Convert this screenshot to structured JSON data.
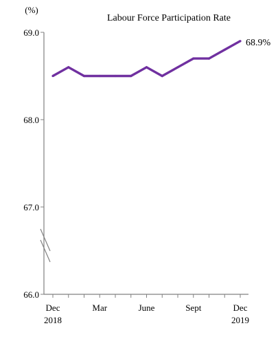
{
  "chart_data": {
    "type": "line",
    "title": "Labour Force Participation Rate",
    "unit_label": "(%)",
    "ylim": [
      66.0,
      69.0
    ],
    "yticks": [
      "66.0",
      "67.0",
      "68.0",
      "69.0"
    ],
    "axis_break": true,
    "grid": false,
    "x": [
      "Dec 2018",
      "Jan 2019",
      "Feb 2019",
      "Mar 2019",
      "Apr 2019",
      "May 2019",
      "Jun 2019",
      "Jul 2019",
      "Aug 2019",
      "Sep 2019",
      "Oct 2019",
      "Nov 2019",
      "Dec 2019"
    ],
    "xtick_labels": [
      {
        "index": 0,
        "line1": "Dec",
        "line2": "2018"
      },
      {
        "index": 3,
        "line1": "Mar",
        "line2": ""
      },
      {
        "index": 6,
        "line1": "June",
        "line2": ""
      },
      {
        "index": 9,
        "line1": "Sept",
        "line2": ""
      },
      {
        "index": 12,
        "line1": "Dec",
        "line2": "2019"
      }
    ],
    "series": [
      {
        "values": [
          68.5,
          68.6,
          68.5,
          68.5,
          68.5,
          68.5,
          68.6,
          68.5,
          68.6,
          68.7,
          68.7,
          68.8,
          68.9
        ],
        "color": "#7030a0"
      }
    ],
    "end_label": "68.9%"
  }
}
